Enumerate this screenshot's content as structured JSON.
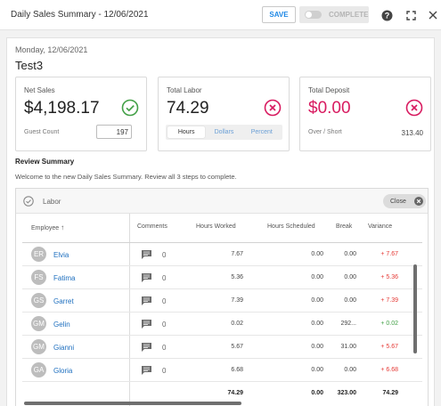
{
  "header": {
    "title": "Daily Sales Summary - 12/06/2021",
    "save_label": "SAVE",
    "complete_label": "COMPLETE",
    "help_icon": "help-icon",
    "fullscreen_icon": "fullscreen-icon",
    "close_icon": "close-icon"
  },
  "summary": {
    "date": "Monday, 12/06/2021",
    "store": "Test3"
  },
  "cards": {
    "net_sales": {
      "label": "Net Sales",
      "value": "$4,198.17",
      "status": "ok",
      "guest_label": "Guest Count",
      "guest_value": "197"
    },
    "total_labor": {
      "label": "Total Labor",
      "value": "74.29",
      "status": "error",
      "tabs": [
        "Hours",
        "Dollars",
        "Percent"
      ],
      "active_tab": "Hours"
    },
    "total_deposit": {
      "label": "Total Deposit",
      "value": "$0.00",
      "status": "error",
      "over_short_label": "Over / Short",
      "over_short_value": "313.40"
    }
  },
  "review": {
    "title": "Review Summary",
    "text": "Welcome to the new Daily Sales Summary. Review all 3 steps to complete."
  },
  "labor": {
    "title": "Labor",
    "close_label": "Close",
    "columns": [
      "Employee",
      "Comments",
      "Hours Worked",
      "Hours Scheduled",
      "Break",
      "Variance"
    ],
    "rows": [
      {
        "initials": "ER",
        "name": "Elvia",
        "comments": "0",
        "hours_worked": "7.67",
        "hours_scheduled": "0.00",
        "break": "0.00",
        "variance": "+ 7.67",
        "variance_dir": "neg"
      },
      {
        "initials": "FS",
        "name": "Fatima",
        "comments": "0",
        "hours_worked": "5.36",
        "hours_scheduled": "0.00",
        "break": "0.00",
        "variance": "+ 5.36",
        "variance_dir": "neg"
      },
      {
        "initials": "GS",
        "name": "Garret",
        "comments": "0",
        "hours_worked": "7.39",
        "hours_scheduled": "0.00",
        "break": "0.00",
        "variance": "+ 7.39",
        "variance_dir": "neg"
      },
      {
        "initials": "GM",
        "name": "Gelin",
        "comments": "0",
        "hours_worked": "0.02",
        "hours_scheduled": "0.00",
        "break": "292...",
        "variance": "+ 0.02",
        "variance_dir": "pos"
      },
      {
        "initials": "GM",
        "name": "Gianni",
        "comments": "0",
        "hours_worked": "5.67",
        "hours_scheduled": "0.00",
        "break": "31.00",
        "variance": "+ 5.67",
        "variance_dir": "neg"
      },
      {
        "initials": "GA",
        "name": "Gloria",
        "comments": "0",
        "hours_worked": "6.68",
        "hours_scheduled": "0.00",
        "break": "0.00",
        "variance": "+ 6.68",
        "variance_dir": "neg"
      }
    ],
    "totals": {
      "hours_worked": "74.29",
      "hours_scheduled": "0.00",
      "break": "323.00",
      "variance": "74.29"
    }
  },
  "colors": {
    "accent": "#1e88e5",
    "ok": "#43a047",
    "error": "#d81b60",
    "negative": "#e53935"
  }
}
